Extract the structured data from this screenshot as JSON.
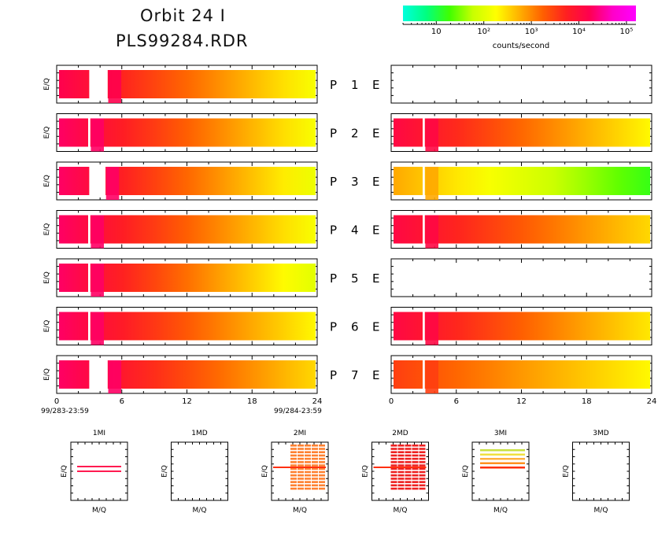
{
  "title_line1": "Orbit 24 I",
  "title_line2": "PLS99284.RDR",
  "colorbar": {
    "label": "counts/second",
    "ticks": [
      "10",
      "10²",
      "10³",
      "10⁴",
      "10⁵"
    ],
    "tick_values": [
      1,
      2,
      3,
      4,
      5
    ],
    "range_log10": [
      0.3,
      5.2
    ],
    "colors": [
      "#00ffdd",
      "#00ff80",
      "#40ff00",
      "#c8ff00",
      "#ffff00",
      "#ffb000",
      "#ff6000",
      "#ff2020",
      "#ff0050",
      "#ff00c8",
      "#ff00ff"
    ]
  },
  "x_ticks": [
    "0",
    "6",
    "12",
    "18",
    "24"
  ],
  "x_tick_values": [
    0,
    6,
    12,
    18,
    24
  ],
  "x_start_label": "99/283-23:59",
  "x_end_label": "99/284-23:59",
  "ylabel": "E/Q",
  "chart_data": {
    "type": "heatmap",
    "xlim": [
      0,
      24
    ],
    "x_unit_hours": true,
    "rows": [
      {
        "label": "P",
        "num": "1",
        "right_label": "E",
        "left": {
          "present": true,
          "log_counts_start": 4.2,
          "log_counts_end": 2.2,
          "gap_hours": [
            3.0,
            4.7
          ]
        },
        "right": {
          "present": false
        }
      },
      {
        "label": "P",
        "num": "2",
        "right_label": "E",
        "left": {
          "present": true,
          "log_counts_start": 4.3,
          "log_counts_end": 2.2,
          "gap_hours": [
            2.9,
            3.1
          ]
        },
        "right": {
          "present": true,
          "log_counts_start": 4.1,
          "log_counts_end": 2.3,
          "gap_hours": [
            2.9,
            3.1
          ]
        }
      },
      {
        "label": "P",
        "num": "3",
        "right_label": "E",
        "left": {
          "present": true,
          "log_counts_start": 4.3,
          "log_counts_end": 2.1,
          "gap_hours": [
            3.0,
            4.5
          ]
        },
        "right": {
          "present": true,
          "log_counts_start": 2.8,
          "log_counts_end": 1.2,
          "gap_hours": [
            2.9,
            3.1
          ]
        }
      },
      {
        "label": "P",
        "num": "4",
        "right_label": "E",
        "left": {
          "present": true,
          "log_counts_start": 4.3,
          "log_counts_end": 2.2,
          "gap_hours": [
            2.9,
            3.1
          ]
        },
        "right": {
          "present": true,
          "log_counts_start": 4.1,
          "log_counts_end": 2.5,
          "gap_hours": [
            2.9,
            3.1
          ]
        }
      },
      {
        "label": "P",
        "num": "5",
        "right_label": "E",
        "left": {
          "present": true,
          "log_counts_start": 4.3,
          "log_counts_end": 2.0,
          "gap_hours": [
            2.9,
            3.1
          ]
        },
        "right": {
          "present": false
        }
      },
      {
        "label": "P",
        "num": "6",
        "right_label": "E",
        "left": {
          "present": true,
          "log_counts_start": 4.3,
          "log_counts_end": 2.3,
          "gap_hours": [
            2.9,
            3.1
          ]
        },
        "right": {
          "present": true,
          "log_counts_start": 4.1,
          "log_counts_end": 2.4,
          "gap_hours": [
            2.9,
            3.1
          ]
        }
      },
      {
        "label": "P",
        "num": "7",
        "right_label": "E",
        "left": {
          "present": true,
          "log_counts_start": 4.3,
          "log_counts_end": 2.5,
          "gap_hours": [
            3.0,
            4.7
          ]
        },
        "right": {
          "present": true,
          "log_counts_start": 3.5,
          "log_counts_end": 2.3,
          "gap_hours": [
            2.9,
            3.1
          ]
        }
      }
    ]
  },
  "small_panels": [
    {
      "title": "1MI",
      "ylabel": "E/Q",
      "xlabel": "M/Q",
      "style": "lines",
      "line_colors": [
        "#ff1a50",
        "#ff1a50"
      ]
    },
    {
      "title": "1MD",
      "ylabel": "E/Q",
      "xlabel": "M/Q",
      "style": "empty",
      "line_colors": []
    },
    {
      "title": "2MI",
      "ylabel": "E/Q",
      "xlabel": "M/Q",
      "style": "grid",
      "line_colors": [
        "#ff8030"
      ]
    },
    {
      "title": "2MD",
      "ylabel": "E/Q",
      "xlabel": "M/Q",
      "style": "grid",
      "line_colors": [
        "#ee2020"
      ]
    },
    {
      "title": "3MI",
      "ylabel": "E/Q",
      "xlabel": "M/Q",
      "style": "stack",
      "line_colors": [
        "#c8e040",
        "#f0e040",
        "#ffb040",
        "#ff9020",
        "#ff3000"
      ]
    },
    {
      "title": "3MD",
      "ylabel": "E/Q",
      "xlabel": "M/Q",
      "style": "empty",
      "line_colors": []
    }
  ]
}
